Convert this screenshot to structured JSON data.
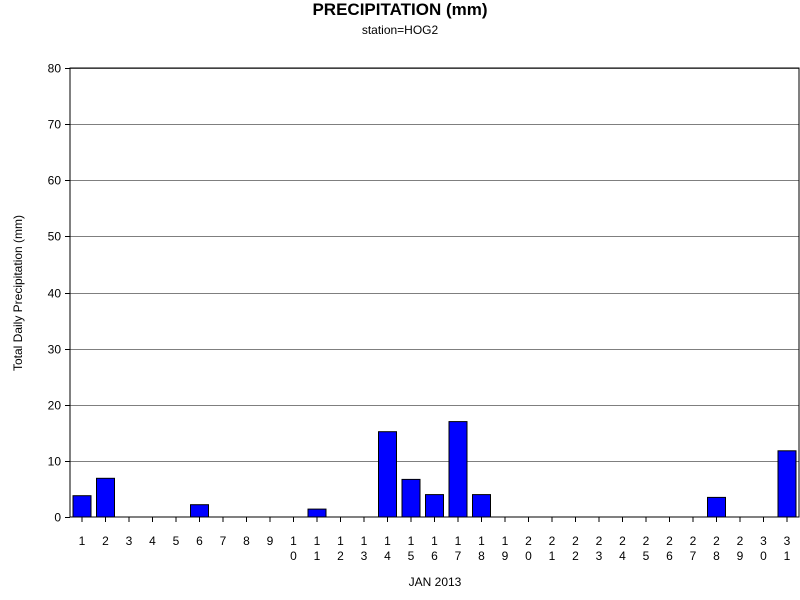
{
  "chart_data": {
    "type": "bar",
    "title": "PRECIPITATION (mm)",
    "subtitle": "station=HOG2",
    "xlabel": "JAN 2013",
    "ylabel": "Total Daily Precipitation (mm)",
    "categories": [
      "1",
      "2",
      "3",
      "4",
      "5",
      "6",
      "7",
      "8",
      "9",
      "10",
      "11",
      "12",
      "13",
      "14",
      "15",
      "16",
      "17",
      "18",
      "19",
      "20",
      "21",
      "22",
      "23",
      "24",
      "25",
      "26",
      "27",
      "28",
      "29",
      "30",
      "31"
    ],
    "values": [
      3.8,
      6.9,
      0,
      0,
      0,
      2.2,
      0,
      0,
      0,
      0,
      1.4,
      0,
      0,
      15.2,
      6.7,
      4.0,
      17.0,
      4.0,
      0,
      0,
      0,
      0,
      0,
      0,
      0,
      0,
      0,
      3.5,
      0,
      0,
      11.8
    ],
    "ylim": [
      0,
      80
    ],
    "yticks": [
      0,
      10,
      20,
      30,
      40,
      50,
      60,
      70,
      80
    ],
    "grid": true,
    "bar_color": "#0000ff"
  }
}
